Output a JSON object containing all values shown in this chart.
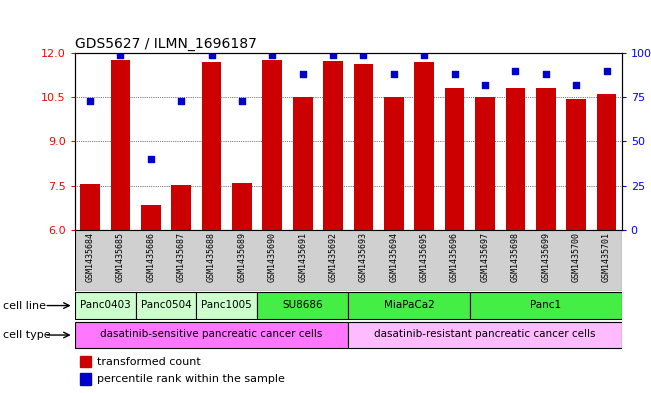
{
  "title": "GDS5627 / ILMN_1696187",
  "samples": [
    "GSM1435684",
    "GSM1435685",
    "GSM1435686",
    "GSM1435687",
    "GSM1435688",
    "GSM1435689",
    "GSM1435690",
    "GSM1435691",
    "GSM1435692",
    "GSM1435693",
    "GSM1435694",
    "GSM1435695",
    "GSM1435696",
    "GSM1435697",
    "GSM1435698",
    "GSM1435699",
    "GSM1435700",
    "GSM1435701"
  ],
  "bar_values": [
    7.55,
    11.75,
    6.85,
    7.52,
    11.7,
    7.6,
    11.78,
    10.52,
    11.72,
    11.62,
    10.5,
    11.68,
    10.8,
    10.5,
    10.8,
    10.8,
    10.45,
    10.6
  ],
  "percentile_values": [
    73,
    99,
    40,
    73,
    99,
    73,
    99,
    88,
    99,
    99,
    88,
    99,
    88,
    82,
    90,
    88,
    82,
    90
  ],
  "ylim_left": [
    6,
    12
  ],
  "ylim_right": [
    0,
    100
  ],
  "yticks_left": [
    6,
    7.5,
    9,
    10.5,
    12
  ],
  "yticks_right": [
    0,
    25,
    50,
    75,
    100
  ],
  "bar_color": "#cc0000",
  "dot_color": "#0000cc",
  "cell_lines": [
    {
      "name": "Panc0403",
      "start": 0,
      "end": 2,
      "color": "#ccffcc"
    },
    {
      "name": "Panc0504",
      "start": 2,
      "end": 4,
      "color": "#ccffcc"
    },
    {
      "name": "Panc1005",
      "start": 4,
      "end": 6,
      "color": "#ccffcc"
    },
    {
      "name": "SU8686",
      "start": 6,
      "end": 9,
      "color": "#44ee44"
    },
    {
      "name": "MiaPaCa2",
      "start": 9,
      "end": 13,
      "color": "#44ee44"
    },
    {
      "name": "Panc1",
      "start": 13,
      "end": 18,
      "color": "#44ee44"
    }
  ],
  "cell_types": [
    {
      "name": "dasatinib-sensitive pancreatic cancer cells",
      "start": 0,
      "end": 9,
      "color": "#ff77ff"
    },
    {
      "name": "dasatinib-resistant pancreatic cancer cells",
      "start": 9,
      "end": 18,
      "color": "#ffbbff"
    }
  ],
  "legend_bar_label": "transformed count",
  "legend_dot_label": "percentile rank within the sample",
  "cell_line_label": "cell line",
  "cell_type_label": "cell type"
}
